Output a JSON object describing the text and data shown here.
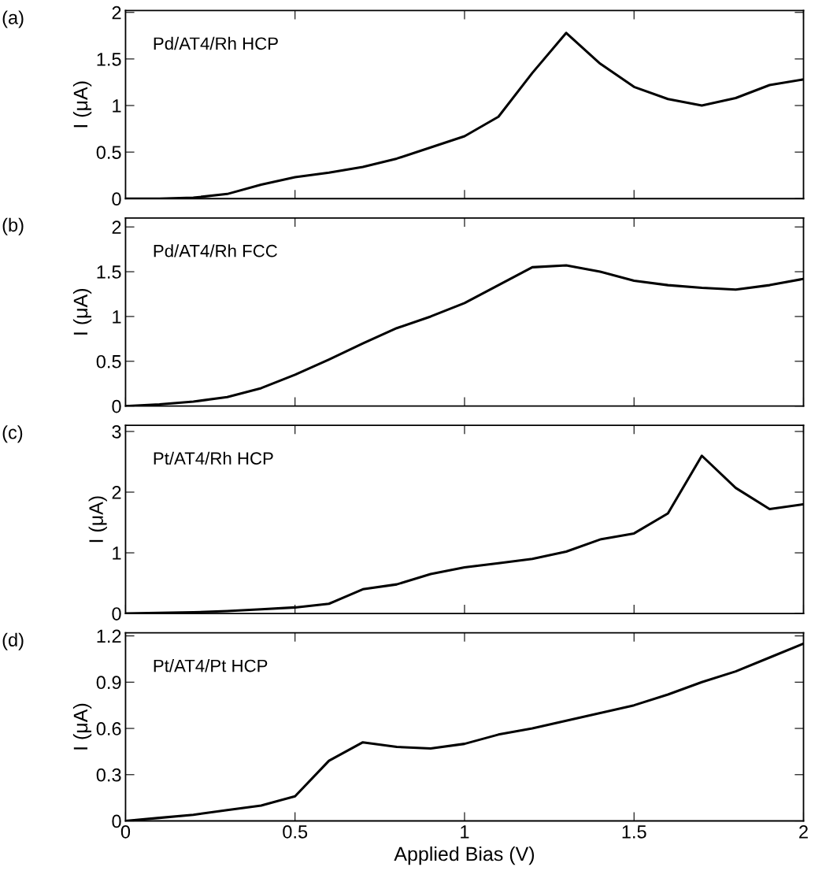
{
  "chart_data": [
    {
      "type": "line",
      "title": "(a)",
      "annotations": [
        "Pd/AT4/Rh HCP"
      ],
      "ylabel": "I (μA)",
      "color": "#000000",
      "tick_labels": "y",
      "x": [
        0,
        0.1,
        0.2,
        0.3,
        0.4,
        0.5,
        0.6,
        0.7,
        0.8,
        0.9,
        1.0,
        1.1,
        1.2,
        1.3,
        1.4,
        1.5,
        1.6,
        1.7,
        1.8,
        1.9,
        2.0
      ],
      "values": [
        0,
        0,
        0.01,
        0.05,
        0.15,
        0.23,
        0.28,
        0.34,
        0.43,
        0.55,
        0.67,
        0.88,
        1.35,
        1.78,
        1.45,
        1.2,
        1.07,
        1.0,
        1.08,
        1.22,
        1.28
      ],
      "xlim": [
        0,
        2
      ],
      "xticks": [
        0,
        0.5,
        1,
        1.5,
        2
      ],
      "ylim": [
        0,
        2.02
      ],
      "yticks": [
        0,
        0.5,
        1,
        1.5,
        2
      ]
    },
    {
      "type": "line",
      "title": "(b)",
      "annotations": [
        "Pd/AT4/Rh FCC"
      ],
      "ylabel": "I (μA)",
      "color": "#000000",
      "tick_labels": "y",
      "x": [
        0,
        0.1,
        0.2,
        0.3,
        0.4,
        0.5,
        0.6,
        0.7,
        0.8,
        0.9,
        1.0,
        1.1,
        1.2,
        1.3,
        1.4,
        1.5,
        1.6,
        1.7,
        1.8,
        1.9,
        2.0
      ],
      "values": [
        0,
        0.02,
        0.05,
        0.1,
        0.2,
        0.35,
        0.52,
        0.7,
        0.87,
        1.0,
        1.15,
        1.35,
        1.55,
        1.57,
        1.5,
        1.4,
        1.35,
        1.32,
        1.3,
        1.35,
        1.42
      ],
      "xlim": [
        0,
        2
      ],
      "xticks": [
        0,
        0.5,
        1,
        1.5,
        2
      ],
      "ylim": [
        0,
        2.1
      ],
      "yticks": [
        0,
        0.5,
        1,
        1.5,
        2
      ]
    },
    {
      "type": "line",
      "title": "(c)",
      "annotations": [
        "Pt/AT4/Rh HCP"
      ],
      "ylabel": "I (μA)",
      "color": "#000000",
      "tick_labels": "y",
      "x": [
        0,
        0.1,
        0.2,
        0.3,
        0.4,
        0.5,
        0.6,
        0.7,
        0.8,
        0.9,
        1.0,
        1.1,
        1.2,
        1.3,
        1.4,
        1.5,
        1.6,
        1.7,
        1.8,
        1.9,
        2.0
      ],
      "values": [
        0,
        0.01,
        0.02,
        0.04,
        0.07,
        0.1,
        0.16,
        0.4,
        0.48,
        0.65,
        0.76,
        0.83,
        0.9,
        1.02,
        1.22,
        1.32,
        1.65,
        2.6,
        2.07,
        1.72,
        1.8
      ],
      "xlim": [
        0,
        2
      ],
      "xticks": [
        0,
        0.5,
        1,
        1.5,
        2
      ],
      "ylim": [
        0,
        3.1
      ],
      "yticks": [
        0,
        1,
        2,
        3
      ]
    },
    {
      "type": "line",
      "title": "(d)",
      "annotations": [
        "Pt/AT4/Pt HCP"
      ],
      "ylabel": "I (μA)",
      "xlabel": "Applied Bias (V)",
      "color": "#000000",
      "x": [
        0,
        0.1,
        0.2,
        0.3,
        0.4,
        0.5,
        0.6,
        0.7,
        0.8,
        0.9,
        1.0,
        1.1,
        1.2,
        1.3,
        1.4,
        1.5,
        1.6,
        1.7,
        1.8,
        1.9,
        2.0
      ],
      "values": [
        0,
        0.02,
        0.04,
        0.07,
        0.1,
        0.16,
        0.39,
        0.51,
        0.48,
        0.47,
        0.5,
        0.56,
        0.6,
        0.65,
        0.7,
        0.75,
        0.82,
        0.9,
        0.97,
        1.06,
        1.15
      ],
      "xlim": [
        0,
        2
      ],
      "xticks": [
        0,
        0.5,
        1,
        1.5,
        2
      ],
      "ylim": [
        0,
        1.22
      ],
      "yticks": [
        0,
        0.3,
        0.6,
        0.9,
        1.2
      ]
    }
  ]
}
